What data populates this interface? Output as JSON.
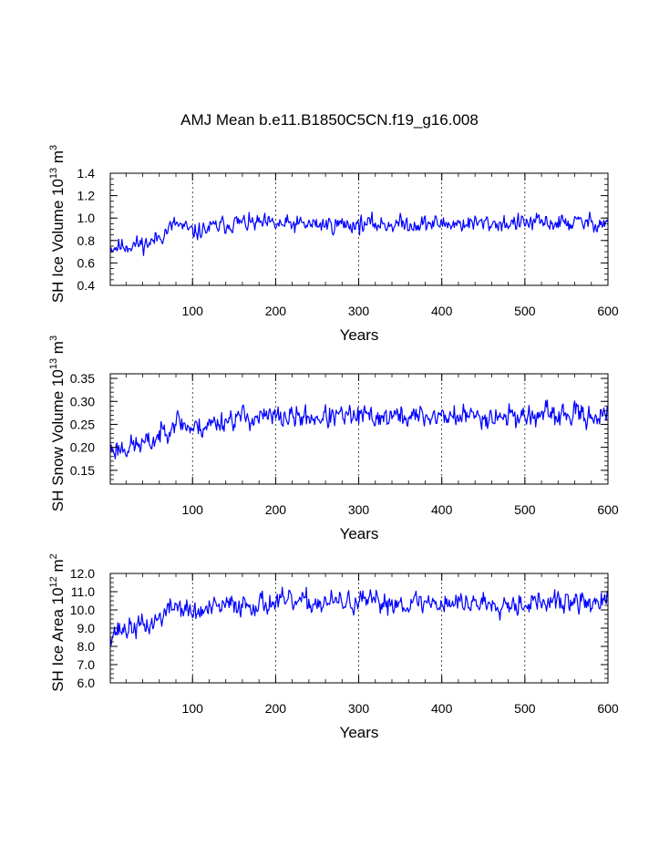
{
  "title": "AMJ Mean b.e11.B1850C5CN.f19_g16.008",
  "chart_data": [
    {
      "type": "line",
      "id": "ice-volume",
      "ylabel_main": "SH Ice Volume 10",
      "ylabel_sup": "13",
      "ylabel_unit": " m",
      "ylabel_unit_sup": "3",
      "xlabel": "Years",
      "xlim": [
        1,
        600
      ],
      "ylim": [
        0.4,
        1.4
      ],
      "xticks": [
        100,
        200,
        300,
        400,
        500,
        600
      ],
      "xtick_labels": [
        "100",
        "200",
        "300",
        "400",
        "500",
        "600"
      ],
      "yticks": [
        0.4,
        0.6,
        0.8,
        1.0,
        1.2,
        1.4
      ],
      "ytick_labels": [
        "0.4",
        "0.6",
        "0.8",
        "1.0",
        "1.2",
        "1.4"
      ],
      "minor_x": 20,
      "minor_y": 0.05,
      "color": "#0000ff",
      "grid_color": "#000000",
      "trend_x": [
        1,
        50,
        80,
        100,
        150,
        200,
        600
      ],
      "trend_y": [
        0.74,
        0.78,
        0.95,
        0.87,
        0.96,
        0.94,
        0.96
      ],
      "noise": 0.07,
      "seed": 11
    },
    {
      "type": "line",
      "id": "snow-volume",
      "ylabel_main": "SH Snow Volume 10",
      "ylabel_sup": "13",
      "ylabel_unit": " m",
      "ylabel_unit_sup": "3",
      "xlabel": "Years",
      "xlim": [
        1,
        600
      ],
      "ylim": [
        0.12,
        0.36
      ],
      "xticks": [
        100,
        200,
        300,
        400,
        500,
        600
      ],
      "xtick_labels": [
        "100",
        "200",
        "300",
        "400",
        "500",
        "600"
      ],
      "yticks": [
        0.15,
        0.2,
        0.25,
        0.3,
        0.35
      ],
      "ytick_labels": [
        "0.15",
        "0.20",
        "0.25",
        "0.30",
        "0.35"
      ],
      "minor_x": 20,
      "minor_y": 0.01,
      "color": "#0000ff",
      "grid_color": "#000000",
      "trend_x": [
        1,
        50,
        80,
        100,
        150,
        200,
        600
      ],
      "trend_y": [
        0.195,
        0.21,
        0.26,
        0.24,
        0.265,
        0.265,
        0.27
      ],
      "noise": 0.022,
      "seed": 23
    },
    {
      "type": "line",
      "id": "ice-area",
      "ylabel_main": "SH Ice Area 10",
      "ylabel_sup": "12",
      "ylabel_unit": " m",
      "ylabel_unit_sup": "2",
      "xlabel": "Years",
      "xlim": [
        1,
        600
      ],
      "ylim": [
        6.0,
        12.0
      ],
      "xticks": [
        100,
        200,
        300,
        400,
        500,
        600
      ],
      "xtick_labels": [
        "100",
        "200",
        "300",
        "400",
        "500",
        "600"
      ],
      "yticks": [
        6.0,
        7.0,
        8.0,
        9.0,
        10.0,
        11.0,
        12.0
      ],
      "ytick_labels": [
        "6.0",
        "7.0",
        "8.0",
        "9.0",
        "10.0",
        "11.0",
        "12.0"
      ],
      "minor_x": 20,
      "minor_y": 0.25,
      "color": "#0000ff",
      "grid_color": "#000000",
      "trend_x": [
        1,
        50,
        80,
        100,
        150,
        200,
        600
      ],
      "trend_y": [
        8.8,
        9.2,
        10.3,
        9.8,
        10.3,
        10.4,
        10.4
      ],
      "noise": 0.55,
      "seed": 37
    }
  ]
}
